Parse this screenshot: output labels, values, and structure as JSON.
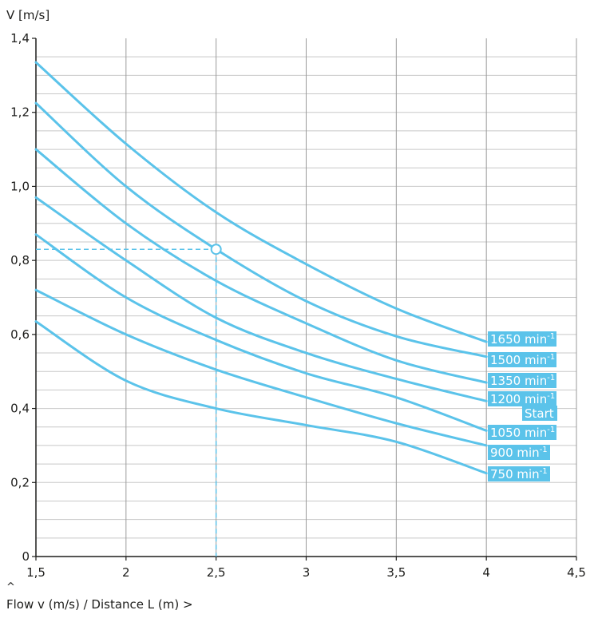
{
  "chart_data": {
    "type": "line",
    "ylabel": "V [m/s]",
    "xlabel": "Flow v (m/s) / Distance L (m) >",
    "xlabel_marker": "^",
    "xlim": [
      1.5,
      4.5
    ],
    "ylim": [
      0,
      1.4
    ],
    "x_ticks": [
      1.5,
      2,
      2.5,
      3,
      3.5,
      4,
      4.5
    ],
    "x_tick_labels": [
      "1,5",
      "2",
      "2,5",
      "3",
      "3,5",
      "4",
      "4,5"
    ],
    "y_ticks": [
      0,
      0.2,
      0.4,
      0.6,
      0.8,
      1.0,
      1.2,
      1.4
    ],
    "y_tick_labels": [
      "0",
      "0,2",
      "0,4",
      "0,6",
      "0,8",
      "1,0",
      "1,2",
      "1,4"
    ],
    "grid": true,
    "line_color": "#5bc3ea",
    "label_bg": "#5bc3ea",
    "series": [
      {
        "name": "1650 min-1",
        "label": "1650 min",
        "sup": "-1",
        "x": [
          1.5,
          2.0,
          2.5,
          3.0,
          3.5,
          4.0
        ],
        "y": [
          1.335,
          1.115,
          0.93,
          0.79,
          0.67,
          0.58
        ]
      },
      {
        "name": "1500 min-1",
        "label": "1500 min",
        "sup": "-1",
        "x": [
          1.5,
          2.0,
          2.5,
          3.0,
          3.5,
          4.0
        ],
        "y": [
          1.225,
          1.0,
          0.83,
          0.69,
          0.595,
          0.54
        ]
      },
      {
        "name": "1350 min-1",
        "label": "1350 min",
        "sup": "-1",
        "x": [
          1.5,
          2.0,
          2.5,
          3.0,
          3.5,
          4.0
        ],
        "y": [
          1.1,
          0.9,
          0.745,
          0.63,
          0.53,
          0.47
        ]
      },
      {
        "name": "1200 min-1",
        "label": "1200 min",
        "sup": "-1",
        "x": [
          1.5,
          2.0,
          2.5,
          3.0,
          3.5,
          4.0
        ],
        "y": [
          0.97,
          0.8,
          0.645,
          0.55,
          0.48,
          0.42
        ]
      },
      {
        "name": "1050 min-1",
        "label": "1050 min",
        "sup": "-1",
        "x": [
          1.5,
          2.0,
          2.5,
          3.0,
          3.5,
          4.0
        ],
        "y": [
          0.87,
          0.7,
          0.585,
          0.495,
          0.43,
          0.34
        ]
      },
      {
        "name": "900 min-1",
        "label": "900 min",
        "sup": "-1",
        "x": [
          1.5,
          2.0,
          2.5,
          3.0,
          3.5,
          4.0
        ],
        "y": [
          0.72,
          0.6,
          0.505,
          0.43,
          0.36,
          0.3
        ]
      },
      {
        "name": "750 min-1",
        "label": "750 min",
        "sup": "-1",
        "x": [
          1.5,
          2.0,
          2.5,
          3.0,
          3.5,
          4.0
        ],
        "y": [
          0.635,
          0.475,
          0.4,
          0.355,
          0.31,
          0.225
        ]
      }
    ],
    "extra_label": "Start",
    "marker_point": {
      "x": 2.5,
      "y": 0.83
    }
  }
}
